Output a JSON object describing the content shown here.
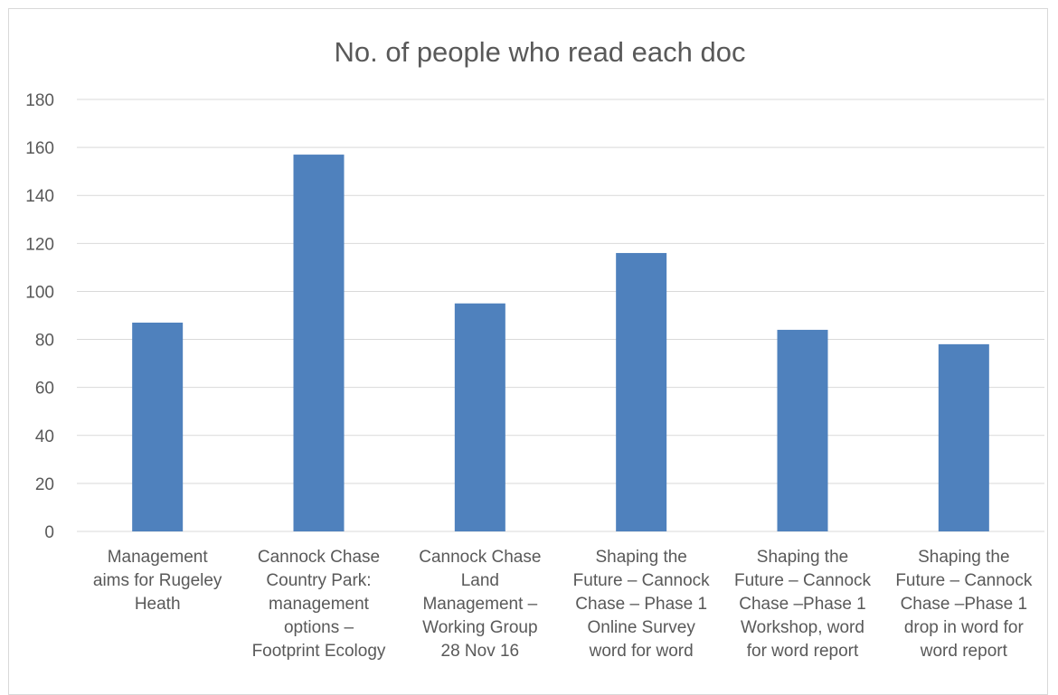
{
  "chart_data": {
    "type": "bar",
    "title": "No. of people who read each doc",
    "xlabel": "",
    "ylabel": "",
    "ylim": [
      0,
      180
    ],
    "yticks": [
      0,
      20,
      40,
      60,
      80,
      100,
      120,
      140,
      160,
      180
    ],
    "grid": true,
    "legend": "none",
    "bar_color": "#4f81bd",
    "gridline_color": "#d9d9d9",
    "categories": [
      [
        "Management",
        "aims for Rugeley",
        "Heath"
      ],
      [
        "Cannock Chase",
        "Country Park:",
        "management",
        "options –",
        "Footprint Ecology"
      ],
      [
        "Cannock Chase",
        "Land",
        "Management –",
        "Working Group",
        "28 Nov 16"
      ],
      [
        "Shaping the",
        "Future – Cannock",
        "Chase – Phase 1",
        "Online Survey",
        "word for word"
      ],
      [
        "Shaping the",
        "Future – Cannock",
        "Chase –Phase 1",
        "Workshop, word",
        "for word report"
      ],
      [
        "Shaping the",
        "Future – Cannock",
        "Chase –Phase 1",
        "drop in word for",
        "word report"
      ]
    ],
    "values": [
      87,
      157,
      95,
      116,
      84,
      78
    ]
  }
}
